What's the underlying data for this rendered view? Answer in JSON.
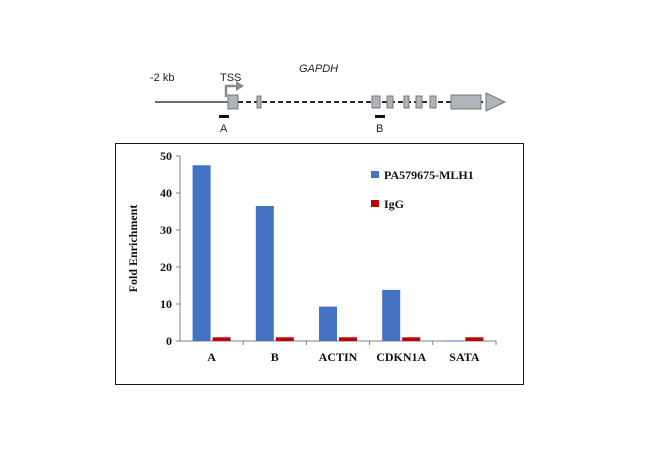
{
  "gene_diagram": {
    "upstream_label": "-2 kb",
    "tss_label": "TSS",
    "gene_name": "GAPDH",
    "region_a_label": "A",
    "region_b_label": "B"
  },
  "chart_data": {
    "type": "bar",
    "categories": [
      "A",
      "B",
      "ACTIN",
      "CDKN1A",
      "SATA"
    ],
    "series": [
      {
        "name": "PA579675-MLH1",
        "values": [
          47.5,
          36.5,
          9.3,
          13.8,
          0.1
        ],
        "color": "#4472c4"
      },
      {
        "name": "IgG",
        "values": [
          1,
          1,
          1,
          1,
          1
        ],
        "color": "#c00000"
      }
    ],
    "title": "",
    "xlabel": "",
    "ylabel": "Fold Enrichment",
    "ylim": [
      0,
      50
    ],
    "yticks": [
      0,
      10,
      20,
      30,
      40,
      50
    ],
    "grid": false,
    "legend": "top-right"
  }
}
